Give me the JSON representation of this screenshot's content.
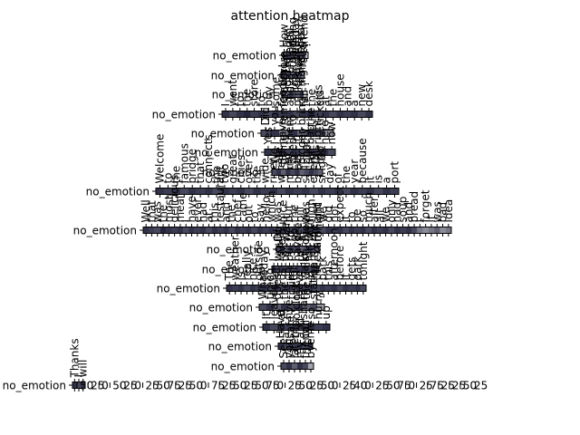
{
  "chart_data": {
    "type": "heatmap",
    "title": "attention heatmap",
    "colormap": [
      "#ffffff",
      "#1a1a33"
    ],
    "panels": [
      {
        "row_label": "no_emotion",
        "tokens": [
          "How",
          "are",
          "you",
          "doing",
          "today",
          "my",
          "dear",
          "friend",
          "?"
        ],
        "weights": [
          0.7,
          0.8,
          0.9,
          0.8,
          0.7,
          0.9,
          0.8,
          0.9,
          0.3
        ],
        "tick_values": []
      },
      {
        "row_label": "no_emotion",
        "tokens": [
          "I",
          "am",
          "fine",
          "thank",
          "you",
          "very",
          "much"
        ],
        "weights": [
          0.9,
          0.8,
          0.85,
          0.7,
          0.9,
          0.8,
          0.6
        ],
        "tick_values": []
      },
      {
        "row_label": "no_emotion",
        "tokens": [
          "Where",
          "did",
          "you",
          "go",
          "last",
          "night",
          "?"
        ],
        "weights": [
          0.8,
          0.7,
          0.9,
          0.8,
          0.7,
          0.9,
          0.2
        ],
        "tick_values": []
      },
      {
        "row_label": "no_emotion",
        "tokens": [
          "I",
          "went",
          "to",
          "the",
          "store",
          "to",
          "buy",
          "some",
          "food",
          "and",
          "milk",
          "for",
          "the",
          "kids",
          "at",
          "the",
          "house",
          "and",
          "a",
          "new",
          "desk"
        ],
        "weights": [
          0.9,
          0.8,
          0.9,
          0.95,
          0.85,
          0.9,
          0.8,
          0.9,
          0.85,
          0.9,
          0.8,
          0.9,
          0.95,
          0.85,
          0.9,
          0.8,
          0.9,
          0.85,
          0.9,
          0.8,
          0.9
        ],
        "tick_values": []
      },
      {
        "row_label": "no_emotion",
        "tokens": [
          "Did",
          "you",
          "remember",
          "to",
          "bring",
          "the",
          "tickets",
          "?"
        ],
        "weights": [
          0.8,
          0.9,
          0.6,
          0.9,
          0.7,
          0.9,
          0.8,
          0.5
        ],
        "tick_values": []
      },
      {
        "row_label": "no_emotion",
        "tokens": [
          "Yes",
          "I",
          "have",
          "them",
          "in",
          "my",
          "bag",
          "right",
          "here",
          "now"
        ],
        "weights": [
          0.9,
          0.8,
          0.9,
          0.85,
          0.9,
          0.8,
          0.9,
          0.85,
          0.9,
          0.8
        ],
        "tick_values": []
      },
      {
        "row_label": "no_emotion",
        "tokens": [
          "Welcome",
          "to",
          "the",
          "famous",
          "bridge",
          "that",
          "connects",
          "the",
          "two",
          "great",
          "cities",
          "over",
          "the",
          "wide",
          "river",
          "where",
          "many",
          "boats",
          "sail",
          "every",
          "single",
          "day",
          "of",
          "the",
          "year",
          "because",
          "it",
          "is",
          "a",
          "port"
        ],
        "weights": [
          0.9,
          0.85,
          0.9,
          0.8,
          0.9,
          0.85,
          0.9,
          0.8,
          0.9,
          0.85,
          0.9,
          0.8,
          0.9,
          0.85,
          0.9,
          0.8,
          0.9,
          0.85,
          0.9,
          0.8,
          0.9,
          0.85,
          0.9,
          0.8,
          0.9,
          0.85,
          0.9,
          0.8,
          0.9,
          0.85
        ],
        "tick_values": []
      },
      {
        "row_label": "no_emotion",
        "tokens": [
          "We",
          "are",
          "going",
          "to",
          "need",
          "a",
          "bigger",
          "boat",
          "for",
          "this",
          "trip"
        ],
        "weights": [
          0.8,
          0.9,
          0.7,
          0.9,
          0.8,
          0.9,
          0.7,
          0.8,
          0.9,
          0.8,
          0.7
        ],
        "tick_values": []
      },
      {
        "row_label": "no_emotion",
        "tokens": [
          "Well",
          "that",
          "was",
          "the",
          "most",
          "delicious",
          "meal",
          "I",
          "have",
          "ever",
          "had",
          "at",
          "this",
          "restaurant",
          "and",
          "the",
          "chef",
          "came",
          "out",
          "to",
          "say",
          "hello",
          "which",
          "was",
          "nice",
          "but",
          "the",
          "bill",
          "was",
          "high",
          "and",
          "we",
          "did",
          "not",
          "expect",
          "it",
          "to",
          "be",
          "so",
          "much",
          "after",
          "all",
          "we",
          "only",
          "had",
          "soup",
          "and",
          "bread",
          "I",
          "forget",
          "it",
          "was",
          "bad",
          "idea"
        ],
        "weights": [
          0.9,
          0.85,
          0.8,
          0.95,
          0.9,
          0.85,
          0.9,
          0.8,
          0.9,
          0.85,
          0.9,
          0.8,
          0.9,
          0.85,
          0.9,
          0.8,
          0.9,
          0.85,
          0.9,
          0.8,
          0.9,
          0.85,
          0.9,
          0.8,
          0.9,
          0.85,
          0.9,
          0.8,
          0.9,
          0.85,
          0.9,
          0.8,
          0.9,
          0.85,
          0.9,
          0.8,
          0.9,
          0.85,
          0.9,
          0.8,
          0.9,
          0.85,
          0.9,
          0.8,
          0.9,
          0.85,
          0.9,
          0.8,
          0.6,
          0.5,
          0.6,
          0.7,
          0.5,
          0.6
        ],
        "tick_values": []
      },
      {
        "row_label": "no_emotion",
        "tokens": [
          "Do",
          "you",
          "want",
          "to",
          "go",
          "see",
          "a",
          "movie",
          "with",
          "me",
          "tonight"
        ],
        "weights": [
          0.8,
          0.9,
          0.7,
          0.9,
          0.8,
          0.9,
          0.7,
          0.8,
          0.9,
          0.8,
          0.7
        ],
        "tick_values": []
      },
      {
        "row_label": "no_emotion",
        "tokens": [
          "I",
          "would",
          "love",
          "to",
          "but",
          "I",
          "have",
          "to",
          "study",
          "for",
          "my",
          "exam"
        ],
        "weights": [
          0.9,
          0.8,
          0.9,
          0.85,
          0.9,
          0.8,
          0.9,
          0.85,
          0.9,
          0.8,
          0.9,
          0.85
        ],
        "tick_values": []
      },
      {
        "row_label": "no_emotion",
        "tokens": [
          "The",
          "weather",
          "is",
          "really",
          "nice",
          "outside",
          "today",
          "so",
          "let",
          "us",
          "go",
          "for",
          "a",
          "walk",
          "in",
          "the",
          "park",
          "this",
          "afternoon",
          "before",
          "it",
          "gets",
          "dark",
          "tonight"
        ],
        "weights": [
          0.9,
          0.85,
          0.9,
          0.8,
          0.9,
          0.85,
          0.9,
          0.8,
          0.9,
          0.85,
          0.9,
          0.8,
          0.9,
          0.85,
          0.9,
          0.8,
          0.9,
          0.85,
          0.9,
          0.8,
          0.9,
          0.85,
          0.9,
          0.8
        ],
        "tick_values": []
      },
      {
        "row_label": "no_emotion",
        "tokens": [
          "What",
          "time",
          "does",
          "the",
          "train",
          "leave",
          "the",
          "station",
          "?"
        ],
        "weights": [
          0.8,
          0.9,
          0.7,
          0.9,
          0.8,
          0.9,
          0.7,
          0.8,
          0.4
        ],
        "tick_values": []
      },
      {
        "row_label": "no_emotion",
        "tokens": [
          "It",
          "leaves",
          "at",
          "five",
          "o'clock",
          "sharp",
          "so",
          "hurry",
          "up"
        ],
        "weights": [
          0.9,
          0.8,
          0.9,
          0.85,
          0.9,
          0.8,
          0.9,
          0.85,
          0.9
        ],
        "tick_values": []
      },
      {
        "row_label": "no_emotion",
        "tokens": [
          "Have",
          "a",
          "safe",
          "trip",
          "and",
          "call",
          "me"
        ],
        "weights": [
          0.9,
          0.8,
          0.9,
          0.85,
          0.9,
          0.8,
          0.9
        ],
        "tick_values": []
      },
      {
        "row_label": "no_emotion",
        "tokens": [
          "See",
          "you",
          "later",
          "my",
          "friend",
          "bye"
        ],
        "weights": [
          0.8,
          0.9,
          0.7,
          0.9,
          0.8,
          0.4
        ],
        "tick_values": []
      },
      {
        "row_label": "no_emotion",
        "tokens": [
          "Thanks",
          "I",
          "will"
        ],
        "weights": [
          0.9,
          0.8,
          0.9
        ],
        "tick_values": [
          "50",
          "25",
          "0",
          "50",
          "25",
          "0",
          "25",
          "50",
          "75",
          "25",
          "50",
          "0",
          "75",
          "25",
          "50",
          "25",
          "50",
          "75",
          "0",
          "25",
          "50",
          "25",
          "50",
          "0",
          "25",
          "40",
          "0",
          "25",
          "50",
          "75",
          "0",
          "25",
          "75",
          "25",
          "25",
          "50",
          "25"
        ]
      }
    ]
  }
}
